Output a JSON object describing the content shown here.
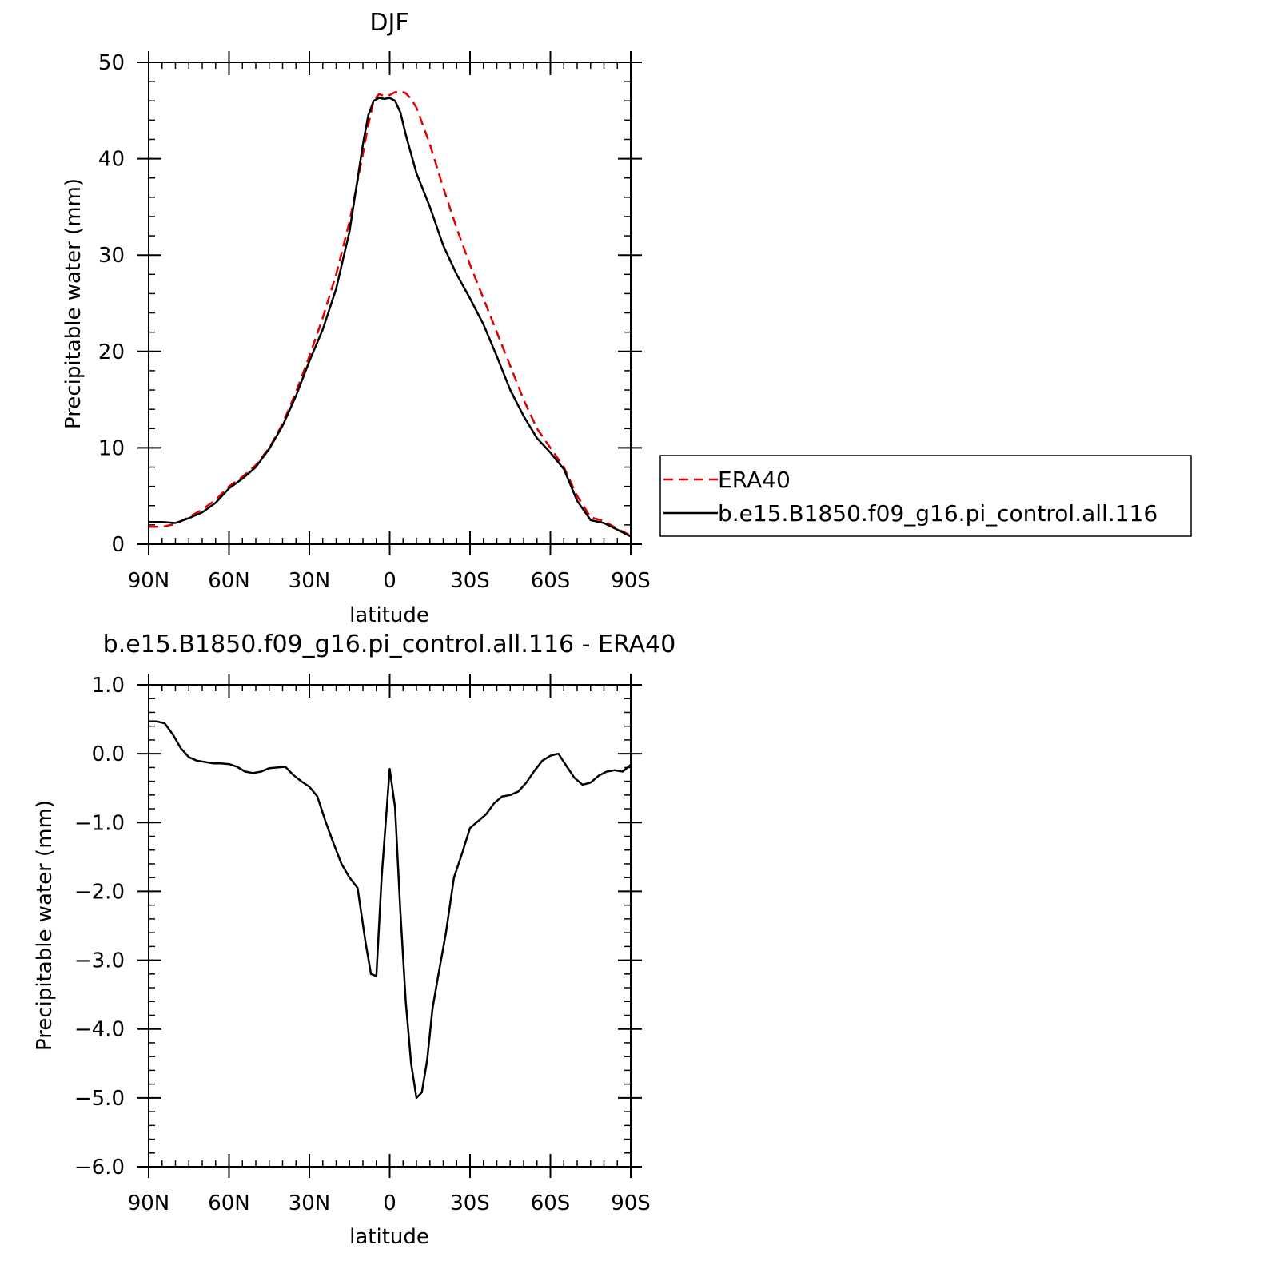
{
  "chart_data": [
    {
      "type": "line",
      "title": "DJF",
      "xlabel": "latitude",
      "ylabel": "Precipitable water (mm)",
      "xlim": [
        90,
        -90
      ],
      "ylim": [
        0,
        50
      ],
      "x_ticks": [
        90,
        60,
        30,
        0,
        -30,
        -60,
        -90
      ],
      "x_tick_labels": [
        "90N",
        "60N",
        "30N",
        "0",
        "30S",
        "60S",
        "90S"
      ],
      "y_ticks": [
        0,
        10,
        20,
        30,
        40,
        50
      ],
      "y_tick_labels": [
        "0",
        "10",
        "20",
        "30",
        "40",
        "50"
      ],
      "grid": false,
      "legend": "right",
      "series": [
        {
          "name": "ERA40",
          "color": "#e00000",
          "style": "dashed",
          "x": [
            90,
            85,
            80,
            75,
            70,
            65,
            60,
            55,
            50,
            45,
            40,
            35,
            30,
            25,
            20,
            15,
            10,
            8,
            6,
            4,
            2,
            0,
            -2,
            -4,
            -6,
            -8,
            -10,
            -15,
            -20,
            -25,
            -30,
            -35,
            -40,
            -45,
            -50,
            -55,
            -60,
            -65,
            -70,
            -75,
            -80,
            -85,
            -90
          ],
          "y": [
            1.8,
            1.8,
            2.1,
            2.8,
            3.6,
            4.6,
            6.0,
            7.0,
            8.2,
            10.0,
            12.5,
            15.8,
            19.5,
            23.5,
            28.0,
            33.5,
            40.5,
            43.5,
            46.0,
            46.7,
            46.5,
            46.6,
            46.9,
            47.0,
            46.8,
            46.2,
            45.3,
            41.5,
            37.0,
            32.8,
            29.0,
            25.5,
            22.0,
            18.5,
            15.0,
            12.0,
            10.0,
            8.0,
            5.0,
            2.8,
            2.4,
            1.6,
            0.9
          ]
        },
        {
          "name": "b.e15.B1850.f09_g16.pi_control.all.116",
          "color": "#000000",
          "style": "solid",
          "x": [
            90,
            85,
            80,
            75,
            70,
            65,
            60,
            55,
            50,
            45,
            40,
            35,
            30,
            25,
            20,
            15,
            10,
            8,
            6,
            4,
            2,
            0,
            -2,
            -4,
            -6,
            -8,
            -10,
            -15,
            -20,
            -25,
            -30,
            -35,
            -40,
            -45,
            -50,
            -55,
            -60,
            -65,
            -70,
            -75,
            -80,
            -85,
            -90
          ],
          "y": [
            2.3,
            2.3,
            2.2,
            2.7,
            3.3,
            4.3,
            5.8,
            6.8,
            8.0,
            9.9,
            12.3,
            15.4,
            19.0,
            22.3,
            26.5,
            32.5,
            41.5,
            44.5,
            46.0,
            46.3,
            46.2,
            46.3,
            46.0,
            44.8,
            42.5,
            40.5,
            38.5,
            35.0,
            31.0,
            28.0,
            25.5,
            22.8,
            19.5,
            16.0,
            13.3,
            11.0,
            9.5,
            7.8,
            4.5,
            2.5,
            2.2,
            1.5,
            0.8
          ]
        }
      ]
    },
    {
      "type": "line",
      "title": "b.e15.B1850.f09_g16.pi_control.all.116 - ERA40",
      "xlabel": "latitude",
      "ylabel": "Precipitable water (mm)",
      "xlim": [
        90,
        -90
      ],
      "ylim": [
        -6,
        1
      ],
      "x_ticks": [
        90,
        60,
        30,
        0,
        -30,
        -60,
        -90
      ],
      "x_tick_labels": [
        "90N",
        "60N",
        "30N",
        "0",
        "30S",
        "60S",
        "90S"
      ],
      "y_ticks": [
        1,
        0,
        -1,
        -2,
        -3,
        -4,
        -5,
        -6
      ],
      "y_tick_labels": [
        "1.0",
        "0.0",
        "−1.0",
        "−2.0",
        "−3.0",
        "−4.0",
        "−5.0",
        "−6.0"
      ],
      "grid": false,
      "series": [
        {
          "color": "#000000",
          "style": "solid",
          "x": [
            90,
            87,
            84,
            81,
            78,
            75,
            72,
            69,
            66,
            63,
            60,
            57,
            54,
            51,
            48,
            45,
            42,
            39,
            36,
            33,
            30,
            27,
            24,
            21,
            18,
            15,
            12,
            9,
            7,
            5,
            3,
            0,
            -2,
            -4,
            -6,
            -8,
            -10,
            -12,
            -14,
            -16,
            -18,
            -21,
            -24,
            -27,
            -30,
            -33,
            -36,
            -39,
            -42,
            -45,
            -48,
            -51,
            -54,
            -57,
            -60,
            -63,
            -66,
            -69,
            -72,
            -75,
            -78,
            -81,
            -84,
            -87,
            -90
          ],
          "y": [
            0.47,
            0.47,
            0.44,
            0.28,
            0.08,
            -0.05,
            -0.1,
            -0.12,
            -0.14,
            -0.14,
            -0.15,
            -0.19,
            -0.26,
            -0.28,
            -0.26,
            -0.21,
            -0.2,
            -0.19,
            -0.31,
            -0.4,
            -0.48,
            -0.62,
            -0.98,
            -1.3,
            -1.6,
            -1.8,
            -1.95,
            -2.75,
            -3.2,
            -3.23,
            -1.8,
            -0.22,
            -0.78,
            -2.3,
            -3.6,
            -4.5,
            -5.0,
            -4.92,
            -4.45,
            -3.7,
            -3.25,
            -2.6,
            -1.8,
            -1.45,
            -1.08,
            -0.98,
            -0.88,
            -0.72,
            -0.62,
            -0.6,
            -0.55,
            -0.42,
            -0.25,
            -0.1,
            -0.03,
            0.0,
            -0.18,
            -0.35,
            -0.45,
            -0.42,
            -0.32,
            -0.26,
            -0.24,
            -0.26,
            -0.16
          ]
        }
      ]
    }
  ]
}
